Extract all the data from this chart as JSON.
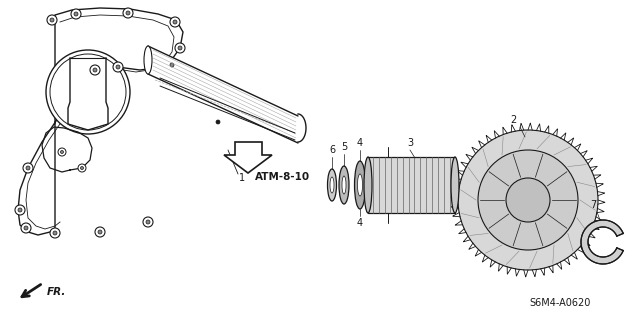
{
  "bg_color": "#ffffff",
  "line_color": "#1a1a1a",
  "part_label_ref": "ATM-8-10",
  "diagram_code": "S6M4-A0620",
  "fr_label": "FR.",
  "figsize": [
    6.4,
    3.19
  ],
  "dpi": 100
}
